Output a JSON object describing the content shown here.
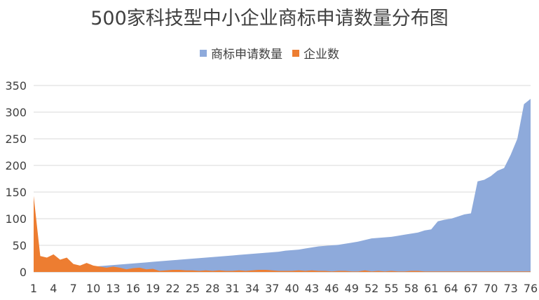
{
  "chart_data": {
    "type": "area",
    "title": "500家科技型中小企业商标申请数量分布图",
    "xlabel": "",
    "ylabel": "",
    "ylim": [
      0,
      350
    ],
    "yticks": [
      0,
      50,
      100,
      150,
      200,
      250,
      300,
      350
    ],
    "x": [
      1,
      2,
      3,
      4,
      5,
      6,
      7,
      8,
      9,
      10,
      11,
      12,
      13,
      14,
      15,
      16,
      17,
      18,
      19,
      20,
      21,
      22,
      23,
      24,
      25,
      26,
      27,
      28,
      29,
      30,
      31,
      32,
      33,
      34,
      35,
      36,
      37,
      38,
      39,
      40,
      41,
      42,
      43,
      44,
      45,
      46,
      47,
      48,
      49,
      50,
      51,
      52,
      53,
      54,
      55,
      56,
      57,
      58,
      59,
      60,
      61,
      62,
      63,
      64,
      65,
      66,
      67,
      68,
      69,
      70,
      71,
      72,
      73,
      74,
      75,
      76
    ],
    "xtick_labels": [
      "1",
      "4",
      "7",
      "10",
      "13",
      "16",
      "19",
      "22",
      "25",
      "28",
      "31",
      "34",
      "37",
      "40",
      "43",
      "46",
      "49",
      "52",
      "55",
      "58",
      "61",
      "64",
      "67",
      "70",
      "73",
      "76"
    ],
    "grid": true,
    "legend_position": "top",
    "series": [
      {
        "name": "商标申请数量",
        "color": "#8eaadb",
        "values": [
          1,
          2,
          3,
          4,
          5,
          6,
          7,
          8,
          9,
          10,
          11,
          12,
          13,
          14,
          15,
          16,
          17,
          18,
          19,
          20,
          21,
          22,
          23,
          24,
          25,
          26,
          27,
          28,
          29,
          30,
          31,
          32,
          33,
          34,
          35,
          36,
          37,
          38,
          40,
          41,
          42,
          44,
          46,
          48,
          49,
          50,
          51,
          53,
          55,
          57,
          60,
          63,
          64,
          65,
          66,
          68,
          70,
          72,
          74,
          78,
          80,
          95,
          98,
          100,
          104,
          108,
          110,
          170,
          173,
          180,
          190,
          195,
          220,
          250,
          315,
          325
        ]
      },
      {
        "name": "企业数",
        "color": "#ed7d31",
        "values": [
          143,
          30,
          27,
          33,
          23,
          27,
          15,
          12,
          17,
          12,
          10,
          8,
          10,
          8,
          5,
          7,
          8,
          5,
          6,
          2,
          3,
          4,
          4,
          3,
          3,
          2,
          3,
          2,
          3,
          2,
          2,
          3,
          2,
          3,
          4,
          4,
          3,
          2,
          2,
          2,
          3,
          2,
          3,
          2,
          2,
          1,
          2,
          2,
          1,
          1,
          3,
          1,
          2,
          1,
          2,
          1,
          1,
          2,
          2,
          1,
          1,
          1,
          1,
          1,
          1,
          1,
          1,
          1,
          1,
          1,
          1,
          1,
          1,
          1,
          1,
          1
        ]
      }
    ]
  }
}
